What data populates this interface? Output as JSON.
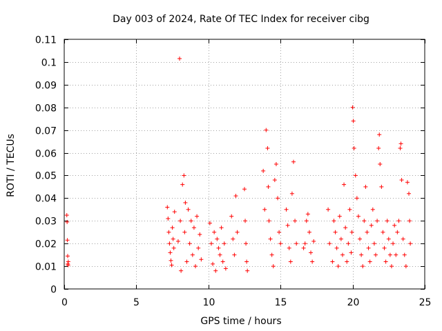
{
  "chart_data": {
    "type": "scatter",
    "title": "Day 003 of 2024, Rate Of TEC Index for receiver cibg",
    "xlabel": "GPS time / hours",
    "ylabel": "ROTI / TECUs",
    "xlim": [
      0,
      25
    ],
    "ylim": [
      0,
      0.11
    ],
    "xticks": [
      0,
      5,
      10,
      15,
      20,
      25
    ],
    "xtick_labels": [
      "0",
      "5",
      "10",
      "15",
      "20",
      "25"
    ],
    "yticks": [
      0,
      0.01,
      0.02,
      0.03,
      0.04,
      0.05,
      0.06,
      0.07,
      0.08,
      0.09,
      0.1,
      0.11
    ],
    "ytick_labels": [
      "0",
      "0.01",
      "0.02",
      "0.03",
      "0.04",
      "0.05",
      "0.06",
      "0.07",
      "0.08",
      "0.09",
      "0.1",
      "0.11"
    ],
    "grid": true,
    "marker": "+",
    "color": "#ff0000",
    "series": [
      {
        "name": "ROTI",
        "x": [
          0.18,
          0.2,
          0.22,
          0.24,
          0.25,
          0.27,
          0.28,
          7.15,
          7.2,
          7.25,
          7.3,
          7.35,
          7.4,
          7.45,
          7.5,
          7.55,
          7.6,
          7.65,
          7.9,
          8.0,
          8.05,
          8.1,
          8.2,
          8.3,
          8.35,
          8.4,
          8.5,
          8.6,
          8.7,
          8.8,
          8.9,
          9.0,
          9.1,
          9.2,
          9.3,
          9.4,
          9.5,
          10.1,
          10.2,
          10.3,
          10.4,
          10.5,
          10.6,
          10.7,
          10.8,
          10.9,
          11.0,
          11.1,
          11.2,
          11.6,
          11.7,
          11.8,
          11.9,
          12.0,
          12.5,
          12.55,
          12.6,
          12.65,
          12.7,
          13.8,
          13.9,
          14.0,
          14.1,
          14.15,
          14.2,
          14.3,
          14.4,
          14.5,
          14.6,
          14.7,
          14.8,
          14.9,
          15.0,
          15.4,
          15.5,
          15.6,
          15.7,
          15.8,
          15.9,
          16.0,
          16.1,
          16.6,
          16.7,
          16.8,
          16.9,
          17.0,
          17.1,
          17.2,
          17.3,
          18.3,
          18.4,
          18.6,
          18.7,
          18.8,
          18.9,
          19.0,
          19.1,
          19.2,
          19.3,
          19.4,
          19.5,
          19.6,
          19.7,
          19.8,
          19.9,
          19.95,
          20.0,
          20.05,
          20.1,
          20.2,
          20.3,
          20.4,
          20.5,
          20.6,
          20.7,
          20.8,
          20.9,
          21.0,
          21.1,
          21.2,
          21.3,
          21.4,
          21.5,
          21.6,
          21.7,
          21.8,
          21.85,
          21.9,
          22.0,
          22.1,
          22.2,
          22.3,
          22.4,
          22.5,
          22.6,
          22.7,
          22.8,
          22.9,
          23.0,
          23.1,
          23.2,
          23.3,
          23.35,
          23.4,
          23.5,
          23.6,
          23.7,
          23.8,
          23.9,
          23.95,
          24.0
        ],
        "y": [
          0.0325,
          0.0295,
          0.0215,
          0.0145,
          0.011,
          0.0105,
          0.012,
          0.036,
          0.031,
          0.025,
          0.02,
          0.016,
          0.0125,
          0.0105,
          0.027,
          0.022,
          0.018,
          0.034,
          0.021,
          0.1015,
          0.03,
          0.008,
          0.046,
          0.05,
          0.025,
          0.038,
          0.012,
          0.035,
          0.02,
          0.03,
          0.015,
          0.027,
          0.01,
          0.032,
          0.018,
          0.024,
          0.013,
          0.029,
          0.02,
          0.011,
          0.025,
          0.008,
          0.022,
          0.018,
          0.015,
          0.027,
          0.012,
          0.02,
          0.009,
          0.032,
          0.022,
          0.015,
          0.041,
          0.025,
          0.044,
          0.03,
          0.02,
          0.012,
          0.008,
          0.052,
          0.035,
          0.07,
          0.062,
          0.045,
          0.03,
          0.022,
          0.015,
          0.01,
          0.048,
          0.055,
          0.04,
          0.025,
          0.02,
          0.035,
          0.028,
          0.018,
          0.012,
          0.042,
          0.056,
          0.03,
          0.02,
          0.018,
          0.02,
          0.03,
          0.033,
          0.025,
          0.016,
          0.012,
          0.021,
          0.035,
          0.02,
          0.012,
          0.03,
          0.025,
          0.018,
          0.01,
          0.032,
          0.022,
          0.015,
          0.046,
          0.027,
          0.012,
          0.02,
          0.035,
          0.016,
          0.025,
          0.08,
          0.074,
          0.062,
          0.05,
          0.04,
          0.032,
          0.022,
          0.015,
          0.01,
          0.03,
          0.045,
          0.025,
          0.018,
          0.012,
          0.028,
          0.035,
          0.02,
          0.015,
          0.03,
          0.062,
          0.068,
          0.055,
          0.045,
          0.025,
          0.018,
          0.012,
          0.03,
          0.022,
          0.015,
          0.01,
          0.02,
          0.028,
          0.015,
          0.025,
          0.03,
          0.062,
          0.064,
          0.048,
          0.022,
          0.015,
          0.01,
          0.047,
          0.042,
          0.03,
          0.02
        ]
      }
    ]
  }
}
